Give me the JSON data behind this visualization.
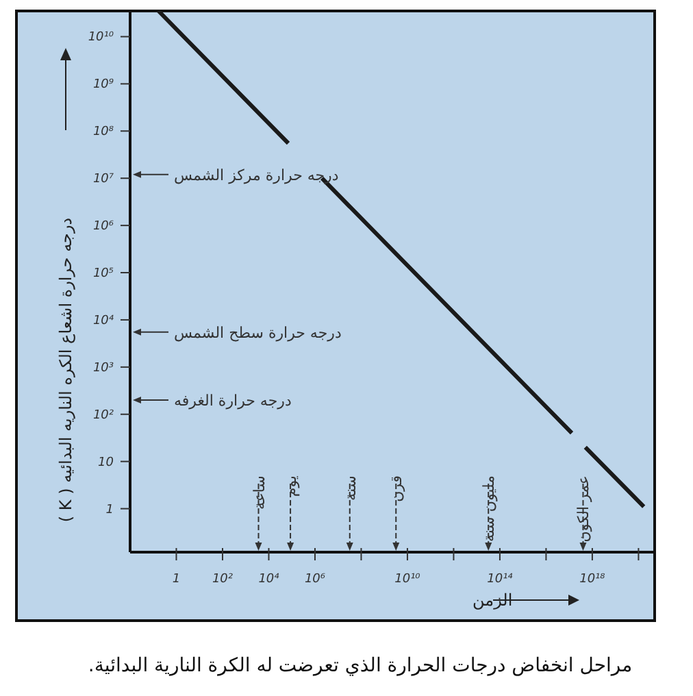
{
  "chart_data": {
    "type": "line",
    "xlabel": "الزمن",
    "ylabel": "درجه حرارة اشعاع الكره الناريه البدائيه ( K )",
    "log": "xy",
    "xlim": [
      0.01,
      5e+20
    ],
    "ylim": [
      0.12,
      35000000000.0
    ],
    "xticks": [
      1,
      {
        "value": 100,
        "label": "10²"
      },
      {
        "value": 10000.0,
        "label": "10⁴"
      },
      {
        "value": 1000000.0,
        "label": "10⁶"
      },
      {
        "value": 100000000.0,
        "label": null
      },
      {
        "value": 10000000000.0,
        "label": "10¹⁰"
      },
      {
        "value": 1000000000000.0,
        "label": null
      },
      {
        "value": 100000000000000.0,
        "label": "10¹⁴"
      },
      {
        "value": 1e+16,
        "label": null
      },
      {
        "value": 1e+18,
        "label": "10¹⁸"
      },
      {
        "value": 1e+20,
        "label": null
      }
    ],
    "yticks": [
      1,
      10,
      {
        "value": 100,
        "label": "10²"
      },
      {
        "value": 1000.0,
        "label": "10³"
      },
      {
        "value": 10000.0,
        "label": "10⁴"
      },
      {
        "value": 100000.0,
        "label": "10⁵"
      },
      {
        "value": 1000000.0,
        "label": "10⁶"
      },
      {
        "value": 10000000.0,
        "label": "10⁷"
      },
      {
        "value": 100000000.0,
        "label": "10⁸"
      },
      {
        "value": 1000000000.0,
        "label": "10⁹"
      },
      {
        "value": 10000000000.0,
        "label": "10¹⁰"
      }
    ],
    "grid": false,
    "marker": "none",
    "line_style": "solid",
    "series": [
      {
        "color": "#1a1a1a",
        "x": [
          0.17,
          70000.0,
          null,
          2000000.0,
          1.3e+17,
          null,
          5e+17,
          1.7e+20
        ],
        "values": [
          35000000000.0,
          55000000.0,
          null,
          10000000.0,
          40,
          null,
          20,
          1.1
        ]
      }
    ],
    "ref_lines": [
      {
        "axis": "y",
        "value": 12000000.0,
        "label": "درجه حرارة مركز الشمس",
        "line_style": "solid"
      },
      {
        "axis": "y",
        "value": 5500,
        "label": "درجه حرارة سطح الشمس",
        "line_style": "solid"
      },
      {
        "axis": "y",
        "value": 200,
        "label": "درجه حرارة الغرفه",
        "line_style": "solid"
      },
      {
        "axis": "x",
        "value": 3600,
        "label": "ساعة",
        "line_style": "dashed"
      },
      {
        "axis": "x",
        "value": 86400,
        "label": "يوم",
        "line_style": "dashed"
      },
      {
        "axis": "x",
        "value": 32000000.0,
        "label": "سنة",
        "line_style": "dashed"
      },
      {
        "axis": "x",
        "value": 3200000000.0,
        "label": "قرن",
        "line_style": "dashed"
      },
      {
        "axis": "x",
        "value": 32000000000000.0,
        "label": "مليون سنة",
        "line_style": "dashed"
      },
      {
        "axis": "x",
        "value": 4e+17,
        "label": "عمر الكون",
        "line_style": "dashed"
      }
    ],
    "annotations": [
      "مراحل انخفاض درجات الحرارة الذي تعرضت له الكرة النارية البدائية."
    ]
  }
}
